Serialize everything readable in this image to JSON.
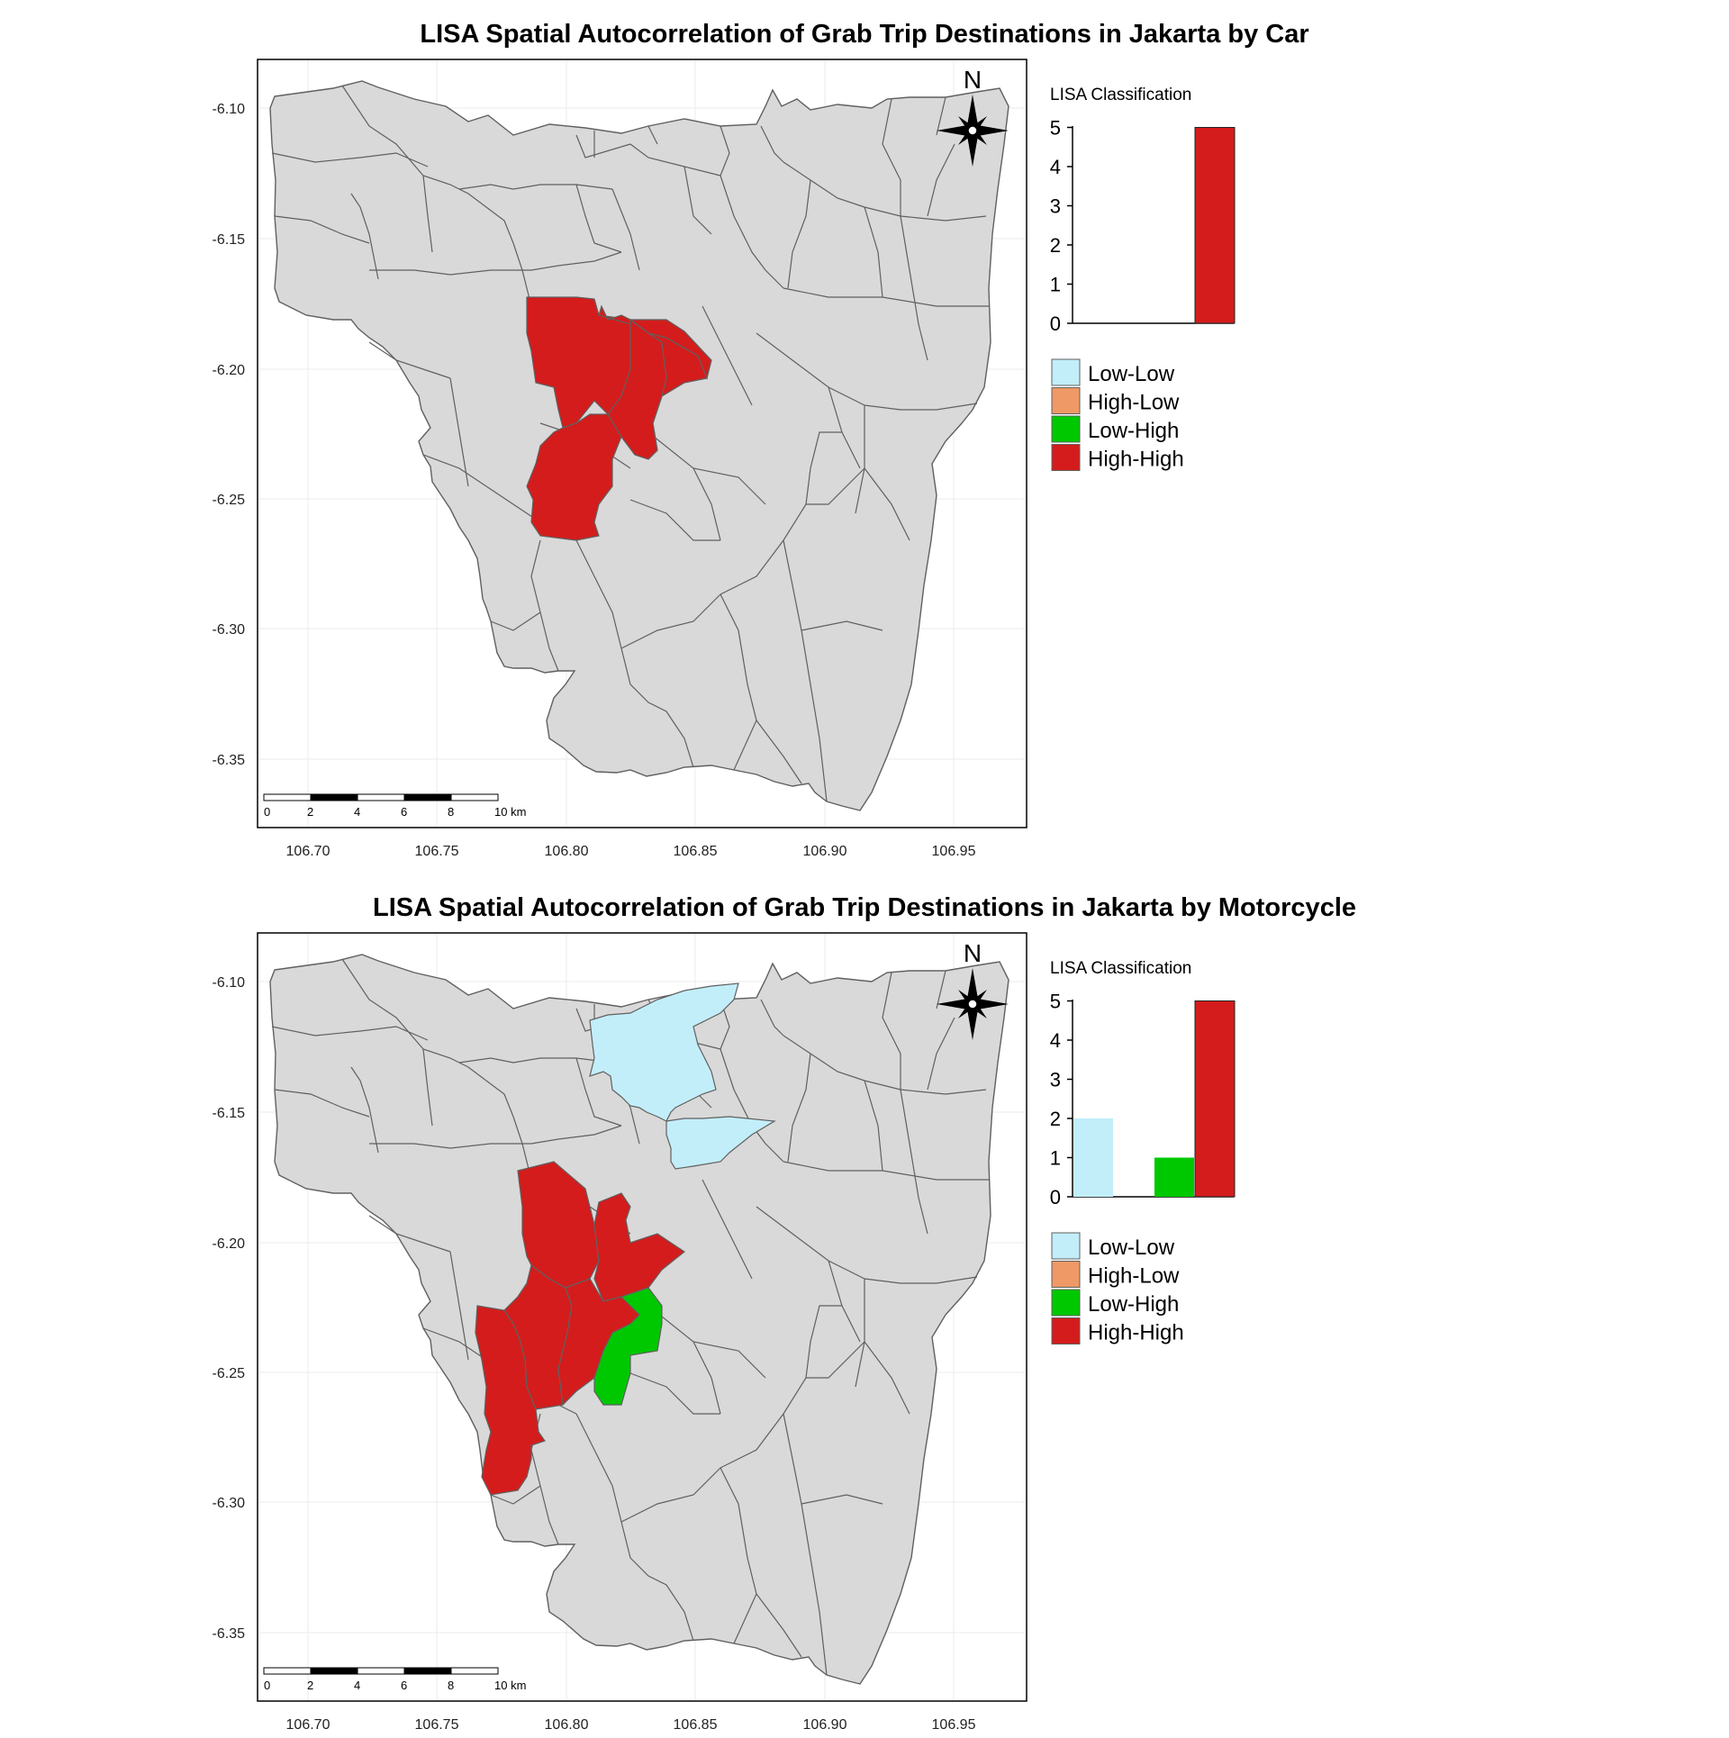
{
  "maps": [
    {
      "title": "LISA Spatial Autocorrelation of Grab Trip Destinations in Jakarta by Car",
      "highlighted_regions": [
        {
          "name": "",
          "class": "High-High"
        },
        {
          "name": "",
          "class": "High-High"
        },
        {
          "name": "",
          "class": "High-High"
        },
        {
          "name": "",
          "class": "High-High"
        },
        {
          "name": "",
          "class": "High-High"
        }
      ],
      "counts": {
        "Low-Low": 0,
        "High-Low": 0,
        "Low-High": 0,
        "High-High": 5
      }
    },
    {
      "title": "LISA Spatial Autocorrelation of Grab Trip Destinations in Jakarta by Motorcycle",
      "highlighted_regions": [
        {
          "name": "",
          "class": "Low-Low"
        },
        {
          "name": "",
          "class": "Low-Low"
        },
        {
          "name": "",
          "class": "High-High"
        },
        {
          "name": "",
          "class": "High-High"
        },
        {
          "name": "",
          "class": "High-High"
        },
        {
          "name": "",
          "class": "High-High"
        },
        {
          "name": "",
          "class": "High-High"
        },
        {
          "name": "",
          "class": "Low-High"
        }
      ],
      "counts": {
        "Low-Low": 2,
        "High-Low": 0,
        "Low-High": 1,
        "High-High": 5
      }
    }
  ],
  "legend": {
    "title": "LISA Classification",
    "classes": [
      "Low-Low",
      "High-Low",
      "Low-High",
      "High-High"
    ],
    "colors": {
      "Low-Low": "#c2eefa",
      "High-Low": "#ee9966",
      "Low-High": "#00c800",
      "High-High": "#d41c1c"
    },
    "hist_y_ticks": [
      "0",
      "1",
      "2",
      "3",
      "4",
      "5"
    ]
  },
  "axes": {
    "x_ticks": [
      "106.70",
      "106.75",
      "106.80",
      "106.85",
      "106.90",
      "106.95"
    ],
    "y_ticks": [
      "-6.10",
      "-6.15",
      "-6.20",
      "-6.25",
      "-6.30",
      "-6.35"
    ]
  },
  "scale_bar": {
    "labels": [
      "0",
      "2",
      "4",
      "6",
      "8",
      "10 km"
    ]
  },
  "north_arrow": {
    "label": "N"
  },
  "colors": {
    "region_fill": "#d9d9d9",
    "region_border": "#606060",
    "grid": "#ebebeb"
  }
}
